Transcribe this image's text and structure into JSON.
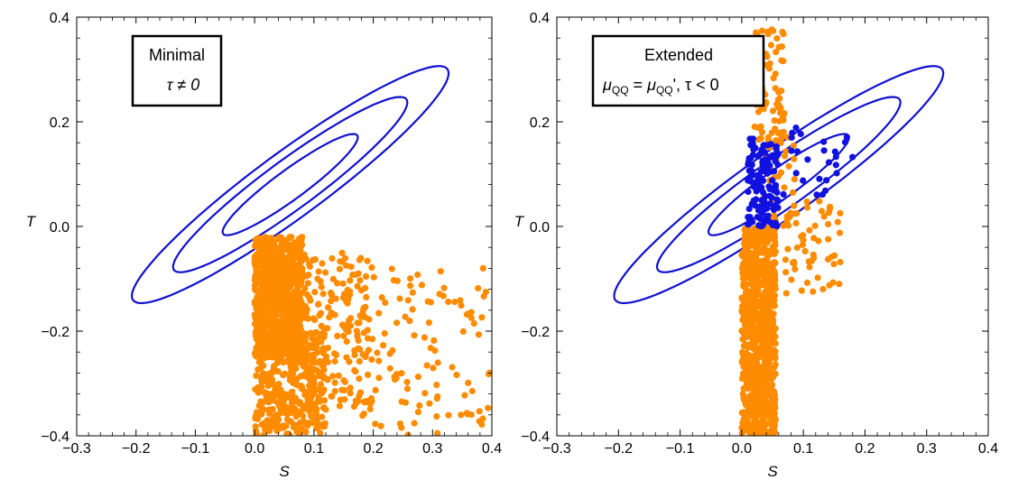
{
  "colors": {
    "ellipse": "#1010d0",
    "points_orange": "#ff8c00",
    "points_blue": "#1010e0",
    "frame": "#000000"
  },
  "chart_data": [
    {
      "type": "scatter",
      "xlabel": "S",
      "ylabel": "T",
      "xlim": [
        -0.3,
        0.4
      ],
      "ylim": [
        -0.4,
        0.4
      ],
      "xticks": [
        "-0.3",
        "-0.2",
        "-0.1",
        "0.0",
        "0.1",
        "0.2",
        "0.3",
        "0.4"
      ],
      "yticks": [
        "-0.4",
        "-0.2",
        "0.0",
        "0.2",
        "0.4"
      ],
      "legend": {
        "line1": "Minimal",
        "line2": "τ ≠ 0",
        "placement": "top-left"
      },
      "contours": [
        {
          "center": [
            0.06,
            0.08
          ],
          "semi_major": 0.147,
          "semi_minor": 0.027,
          "angle_deg": 40
        },
        {
          "center": [
            0.06,
            0.08
          ],
          "semi_major": 0.255,
          "semi_minor": 0.045,
          "angle_deg": 40
        },
        {
          "center": [
            0.06,
            0.08
          ],
          "semi_major": 0.345,
          "semi_minor": 0.06,
          "angle_deg": 40
        }
      ],
      "scatter_regions": [
        {
          "color": "orange",
          "count": 900,
          "x_range": [
            0.0,
            0.08
          ],
          "y_range": [
            -0.25,
            -0.02
          ]
        },
        {
          "color": "orange",
          "count": 350,
          "x_range": [
            0.0,
            0.12
          ],
          "y_range": [
            -0.4,
            -0.2
          ]
        },
        {
          "color": "orange",
          "count": 200,
          "x_range": [
            0.06,
            0.2
          ],
          "y_range": [
            -0.35,
            -0.05
          ]
        },
        {
          "color": "orange",
          "count": 120,
          "x_range": [
            0.15,
            0.4
          ],
          "y_range": [
            -0.4,
            -0.08
          ]
        }
      ]
    },
    {
      "type": "scatter",
      "xlabel": "S",
      "ylabel": "T",
      "xlim": [
        -0.3,
        0.4
      ],
      "ylim": [
        -0.4,
        0.4
      ],
      "xticks": [
        "-0.3",
        "-0.2",
        "-0.1",
        "0.0",
        "0.1",
        "0.2",
        "0.3",
        "0.4"
      ],
      "yticks": [
        "-0.4",
        "-0.2",
        "0.0",
        "0.2",
        "0.4"
      ],
      "legend": {
        "line1": "Extended",
        "mu": "μ",
        "sub": "QQ",
        "prime": "'",
        "tail": ",  τ < 0",
        "placement": "top-left"
      },
      "contours": [
        {
          "center": [
            0.06,
            0.08
          ],
          "semi_major": 0.147,
          "semi_minor": 0.027,
          "angle_deg": 40
        },
        {
          "center": [
            0.06,
            0.08
          ],
          "semi_major": 0.255,
          "semi_minor": 0.045,
          "angle_deg": 40
        },
        {
          "center": [
            0.06,
            0.08
          ],
          "semi_major": 0.345,
          "semi_minor": 0.06,
          "angle_deg": 40
        }
      ],
      "scatter_regions": [
        {
          "color": "orange",
          "count": 900,
          "x_range": [
            0.0,
            0.055
          ],
          "y_range": [
            -0.4,
            0.0
          ]
        },
        {
          "color": "orange",
          "count": 70,
          "x_range": [
            0.02,
            0.07
          ],
          "y_range": [
            0.15,
            0.4
          ]
        },
        {
          "color": "orange",
          "count": 60,
          "x_range": [
            0.05,
            0.16
          ],
          "y_range": [
            -0.13,
            0.05
          ]
        },
        {
          "color": "orange",
          "count": 40,
          "x_range": [
            0.03,
            0.09
          ],
          "y_range": [
            0.0,
            0.18
          ]
        },
        {
          "color": "blue",
          "count": 120,
          "x_range": [
            0.01,
            0.06
          ],
          "y_range": [
            0.0,
            0.17
          ]
        },
        {
          "color": "blue",
          "count": 25,
          "x_range": [
            0.05,
            0.18
          ],
          "y_range": [
            0.06,
            0.19
          ]
        }
      ]
    }
  ]
}
